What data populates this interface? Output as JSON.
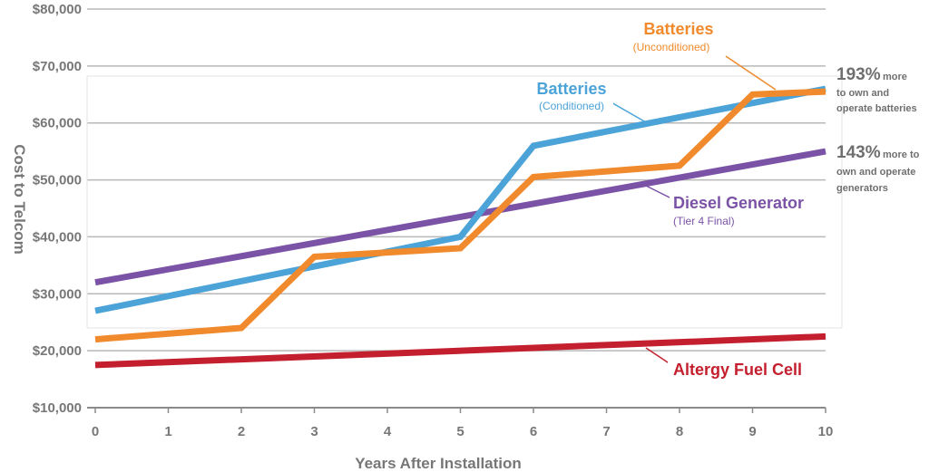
{
  "chart_data": {
    "type": "line",
    "xlabel": "Years After Installation",
    "ylabel": "Cost to Telcom",
    "x": [
      0,
      1,
      2,
      3,
      4,
      5,
      6,
      7,
      8,
      9,
      10
    ],
    "x_ticks": [
      "0",
      "1",
      "2",
      "3",
      "4",
      "5",
      "6",
      "7",
      "8",
      "9",
      "10"
    ],
    "xlim": [
      0,
      10
    ],
    "ylim": [
      10000,
      80000
    ],
    "y_ticks": [
      "$10,000",
      "$20,000",
      "$30,000",
      "$40,000",
      "$50,000",
      "$60,000",
      "$70,000",
      "$80,000"
    ],
    "grid": true,
    "series": [
      {
        "name": "Diesel Generator",
        "subtitle": "(Tier 4 Final)",
        "color": "#7b53a6",
        "x": [
          0,
          10
        ],
        "values": [
          32000,
          55000
        ]
      },
      {
        "name": "Batteries",
        "subtitle": "(Conditioned)",
        "color": "#4ba3d8",
        "x": [
          0,
          5,
          6,
          10
        ],
        "values": [
          27000,
          40000,
          56000,
          66000
        ]
      },
      {
        "name": "Batteries",
        "subtitle": "(Unconditioned)",
        "color": "#f08a2c",
        "x": [
          0,
          2,
          3,
          5,
          6,
          8,
          9,
          10
        ],
        "values": [
          22000,
          24000,
          36500,
          38000,
          50500,
          52500,
          65000,
          65500
        ]
      },
      {
        "name": "Altergy Fuel Cell",
        "subtitle": "",
        "color": "#c41f2e",
        "x": [
          0,
          10
        ],
        "values": [
          17500,
          22500
        ]
      }
    ],
    "annotations": [
      {
        "value": "193%",
        "text": "more",
        "lines": [
          "to own and",
          "operate batteries"
        ]
      },
      {
        "value": "143%",
        "text": "more to",
        "lines": [
          "own and operate",
          "generators"
        ]
      }
    ]
  }
}
